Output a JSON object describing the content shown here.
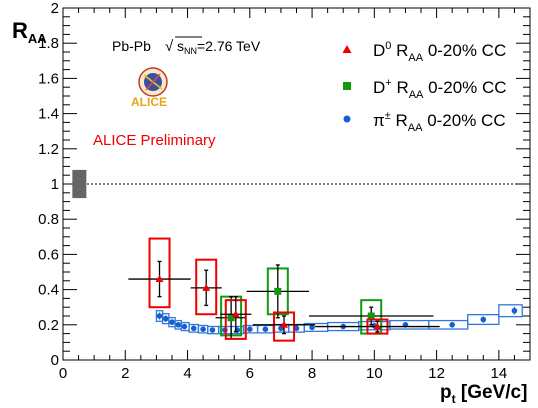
{
  "chart_data": {
    "type": "scatter",
    "xlabel_main": "p",
    "xlabel_sub": "t",
    "xlabel_tail": " [GeV/c]",
    "ylabel_main": "R",
    "ylabel_sub": "AA",
    "xlim": [
      0,
      15
    ],
    "ylim": [
      0,
      2
    ],
    "x_ticks": [
      0,
      2,
      4,
      6,
      8,
      10,
      12,
      14
    ],
    "y_ticks": [
      0,
      0.2,
      0.4,
      0.6,
      0.8,
      1,
      1.2,
      1.4,
      1.6,
      1.8,
      2
    ],
    "x_tick_labels": [
      "0",
      "2",
      "4",
      "6",
      "8",
      "10",
      "12",
      "14"
    ],
    "y_tick_labels": [
      "0",
      "0.2",
      "0.4",
      "0.6",
      "0.8",
      "1",
      "1.2",
      "1.4",
      "1.6",
      "1.8",
      "2"
    ],
    "reference_line": 1,
    "normalization_box": {
      "x": [
        0.3,
        0.75
      ],
      "y": [
        0.92,
        1.08
      ],
      "color": "#666666"
    },
    "annotations": {
      "system": "Pb-Pb",
      "energy_prefix": "√",
      "energy_s": "s",
      "energy_sub": "NN",
      "energy_value": "=2.76 TeV",
      "preliminary": "ALICE Preliminary",
      "logo_text": "ALICE"
    },
    "series": [
      {
        "name_main": "D",
        "name_sup": "0",
        "name_r": " R",
        "name_sub": "AA",
        "name_tail": " 0-20% CC",
        "marker": "triangle",
        "color": "#ee0000",
        "box_color": "#ee0000",
        "points": [
          {
            "x": 3.1,
            "y": 0.46,
            "xerr": 1.0,
            "ystat": 0.1,
            "ysys": [
              0.3,
              0.69
            ]
          },
          {
            "x": 4.6,
            "y": 0.41,
            "xerr": 0.5,
            "ystat": 0.1,
            "ysys": [
              0.26,
              0.57
            ]
          },
          {
            "x": 5.55,
            "y": 0.26,
            "xerr": 0.5,
            "ystat": 0.1,
            "ysys": [
              0.12,
              0.34
            ]
          },
          {
            "x": 7.1,
            "y": 0.2,
            "xerr": 1.0,
            "ystat": 0.05,
            "ysys": [
              0.11,
              0.27
            ]
          },
          {
            "x": 10.1,
            "y": 0.19,
            "xerr": 2.0,
            "ystat": 0.03,
            "ysys": [
              0.15,
              0.23
            ]
          }
        ]
      },
      {
        "name_main": "D",
        "name_sup": "+",
        "name_r": " R",
        "name_sub": "AA",
        "name_tail": " 0-20% CC",
        "marker": "square",
        "color": "#119911",
        "box_color": "#119911",
        "points": [
          {
            "x": 5.4,
            "y": 0.24,
            "xerr": 0.5,
            "ystat": 0.12,
            "ysys": [
              0.14,
              0.36
            ]
          },
          {
            "x": 6.9,
            "y": 0.39,
            "xerr": 1.0,
            "ystat": 0.15,
            "ysys": [
              0.26,
              0.52
            ]
          },
          {
            "x": 9.9,
            "y": 0.25,
            "xerr": 2.0,
            "ystat": 0.05,
            "ysys": [
              0.15,
              0.34
            ]
          }
        ]
      },
      {
        "name_main": "π",
        "name_sup": "±",
        "name_r": " R",
        "name_sub": "AA",
        "name_tail": " 0-20% CC",
        "marker": "circle",
        "color": "#1560d0",
        "box_color": "#3377dd",
        "points": [
          {
            "x": 3.1,
            "y": 0.25
          },
          {
            "x": 3.3,
            "y": 0.235
          },
          {
            "x": 3.5,
            "y": 0.215
          },
          {
            "x": 3.7,
            "y": 0.2
          },
          {
            "x": 3.9,
            "y": 0.19
          },
          {
            "x": 4.2,
            "y": 0.18
          },
          {
            "x": 4.5,
            "y": 0.175
          },
          {
            "x": 4.8,
            "y": 0.17
          },
          {
            "x": 5.2,
            "y": 0.17
          },
          {
            "x": 5.6,
            "y": 0.17
          },
          {
            "x": 6.0,
            "y": 0.175
          },
          {
            "x": 6.5,
            "y": 0.175
          },
          {
            "x": 7.0,
            "y": 0.18
          },
          {
            "x": 7.5,
            "y": 0.18
          },
          {
            "x": 8.0,
            "y": 0.185
          },
          {
            "x": 9.0,
            "y": 0.19
          },
          {
            "x": 10.0,
            "y": 0.195
          },
          {
            "x": 11.0,
            "y": 0.2
          },
          {
            "x": 12.5,
            "y": 0.2
          },
          {
            "x": 13.5,
            "y": 0.23
          },
          {
            "x": 14.5,
            "y": 0.28
          }
        ]
      }
    ]
  }
}
